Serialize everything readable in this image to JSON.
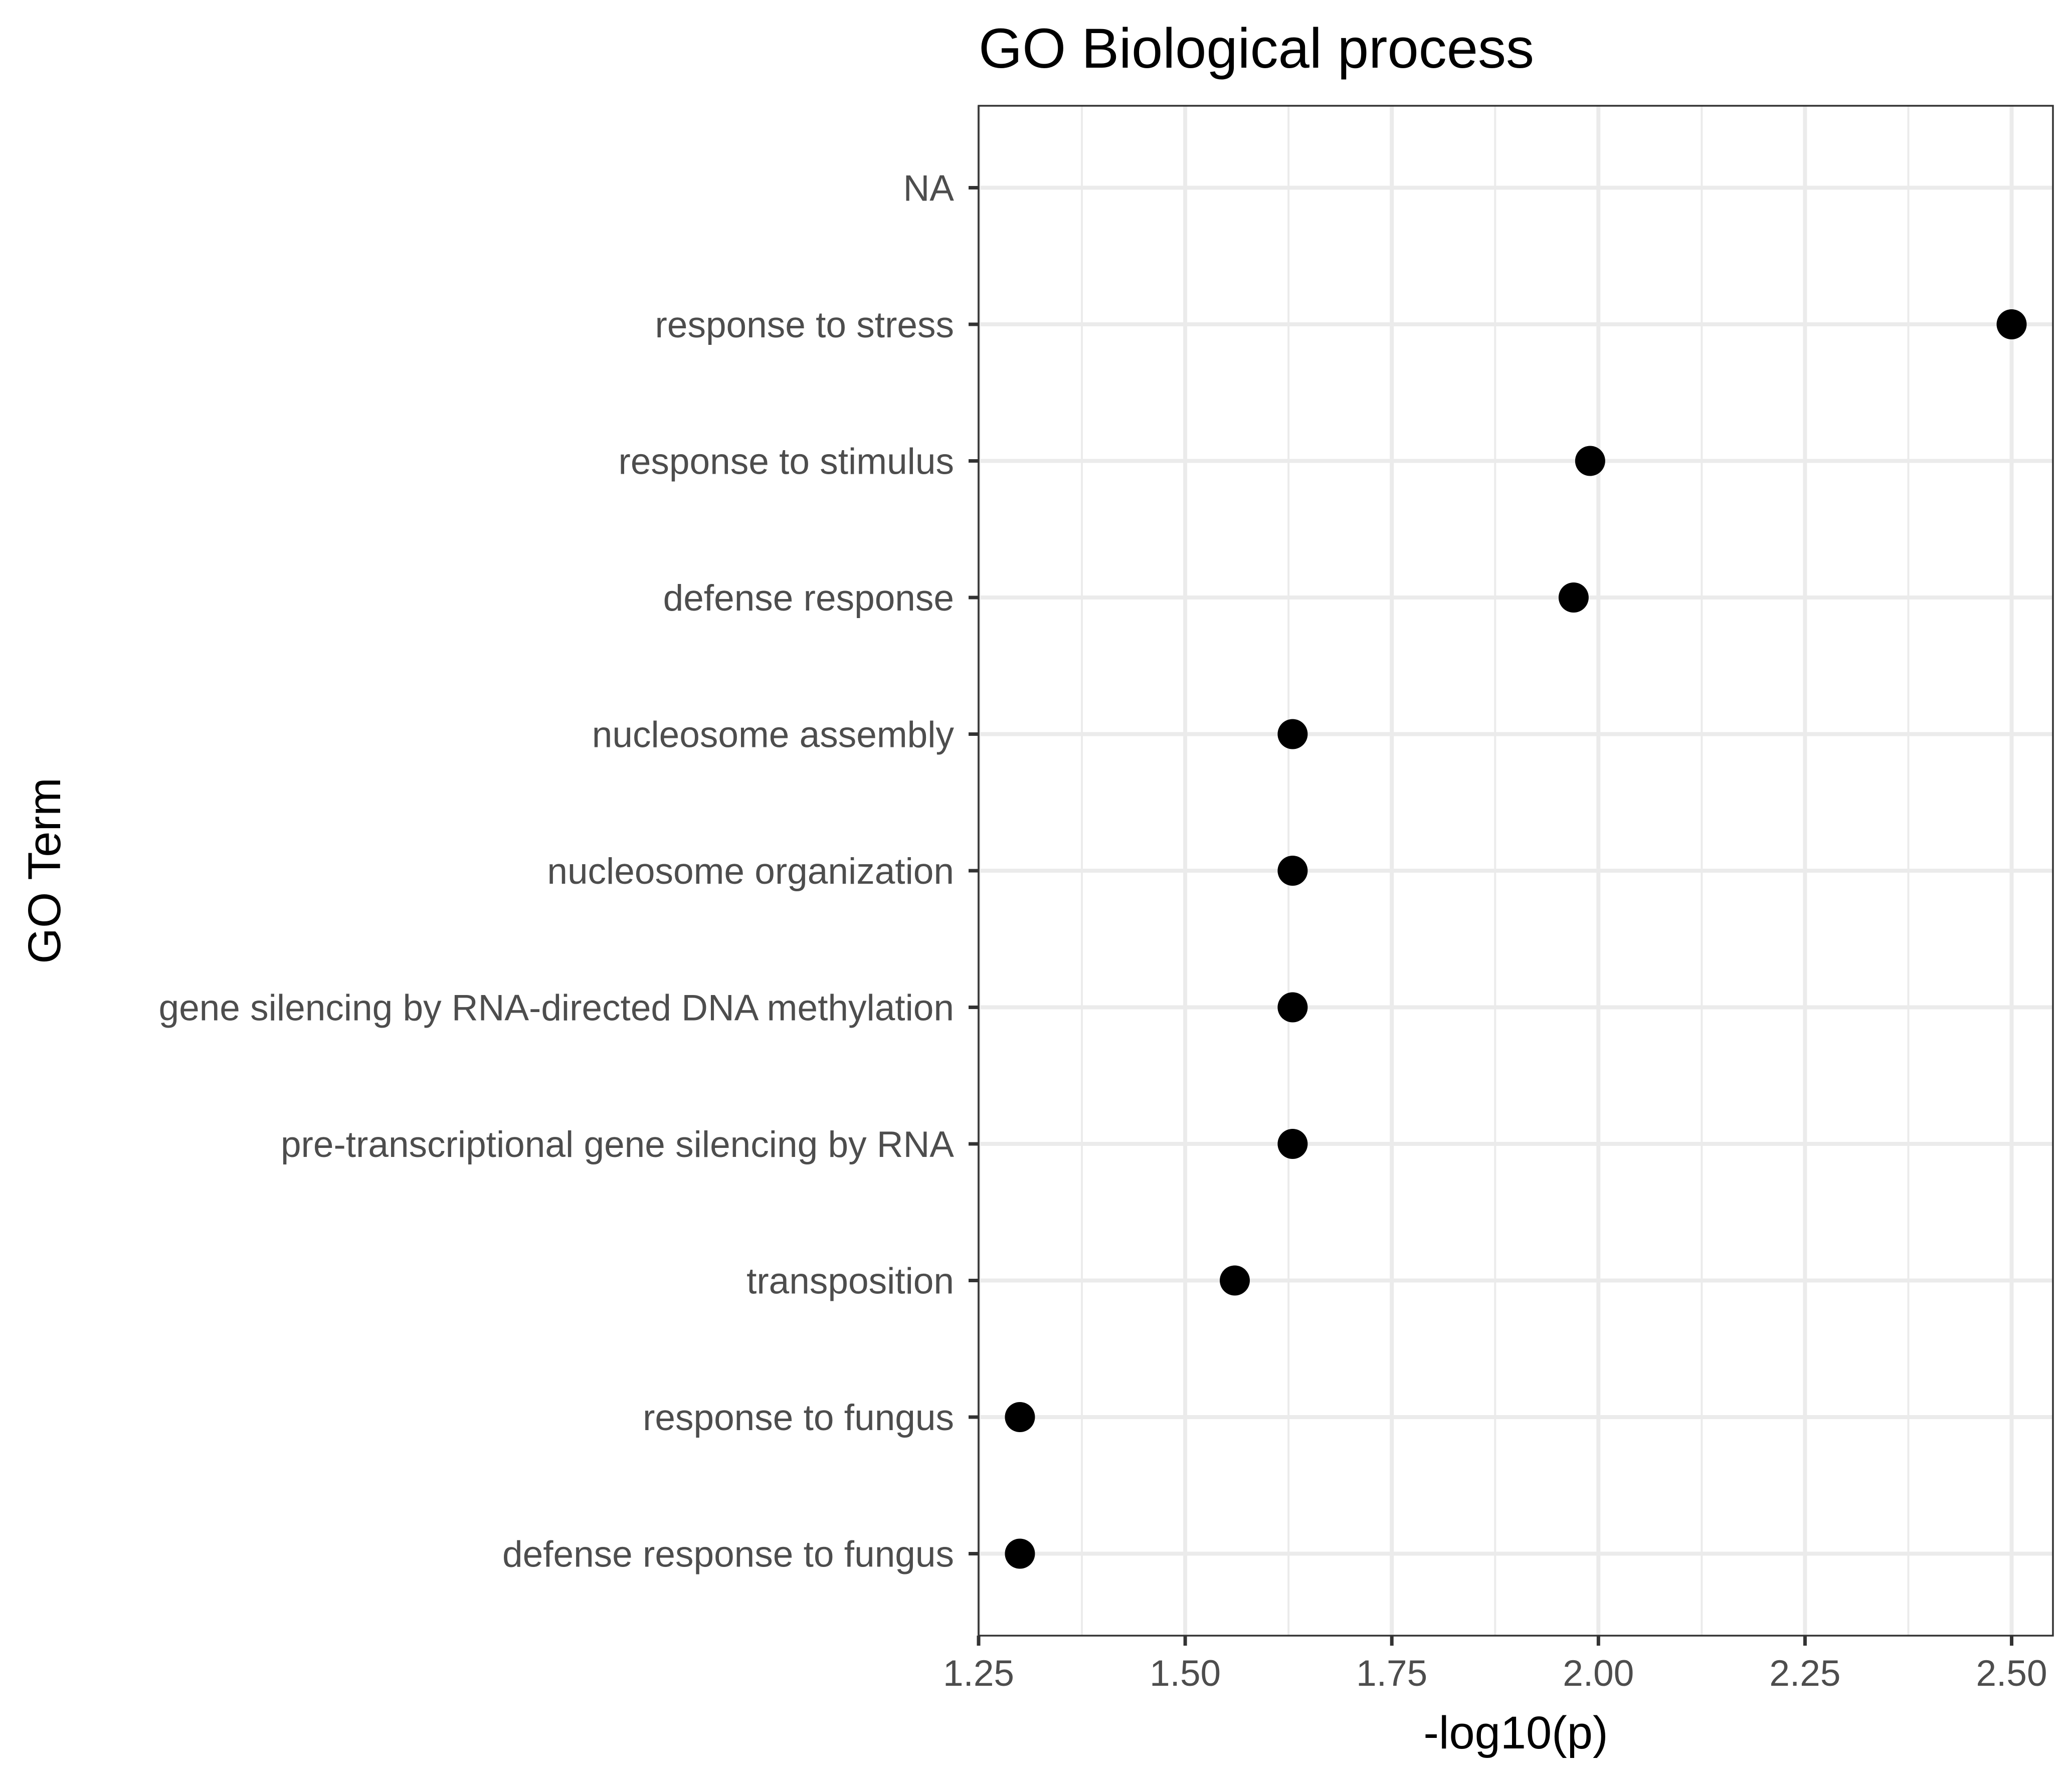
{
  "chart_data": {
    "type": "scatter",
    "title": "GO Biological process",
    "xlabel": "-log10(p)",
    "ylabel": "GO Term",
    "xlim": [
      1.25,
      2.55
    ],
    "x_ticks": [
      1.25,
      1.5,
      1.75,
      2.0,
      2.25,
      2.5
    ],
    "x_tick_labels": [
      "1.25",
      "1.50",
      "1.75",
      "2.00",
      "2.25",
      "2.50"
    ],
    "grid": true,
    "categories": [
      "NA",
      "response to stress",
      "response to stimulus",
      "defense response",
      "nucleosome assembly",
      "nucleosome organization",
      "gene silencing by RNA-directed DNA methylation",
      "pre-transcriptional gene silencing by RNA",
      "transposition",
      "response to fungus",
      "defense response to fungus"
    ],
    "values": [
      null,
      2.5,
      1.99,
      1.97,
      1.63,
      1.63,
      1.63,
      1.63,
      1.56,
      1.3,
      1.3
    ],
    "marker_color": "#000000"
  }
}
